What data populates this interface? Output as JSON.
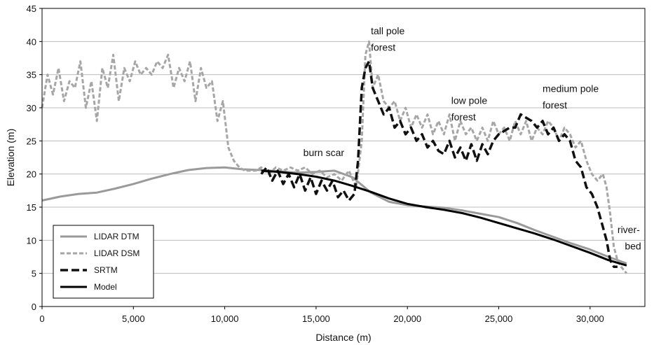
{
  "chart_data": {
    "type": "line",
    "xlabel": "Distance (m)",
    "ylabel": "Elevation (m)",
    "xlim": [
      0,
      33000
    ],
    "ylim": [
      0,
      45
    ],
    "xticks": [
      0,
      5000,
      10000,
      15000,
      20000,
      25000,
      30000
    ],
    "xtick_labels": [
      "0",
      "5,000",
      "10,000",
      "15,000",
      "20,000",
      "25,000",
      "30,000"
    ],
    "yticks": [
      0,
      5,
      10,
      15,
      20,
      25,
      30,
      35,
      40,
      45
    ],
    "ytick_labels": [
      "0",
      "5",
      "10",
      "15",
      "20",
      "25",
      "30",
      "35",
      "40",
      "45"
    ],
    "grid": "horizontal",
    "legend_position": "bottom-left",
    "series": [
      {
        "name": "LIDAR DTM",
        "style": "solid",
        "color": "#9a9a9a",
        "x": [
          0,
          1000,
          2000,
          3000,
          4000,
          5000,
          6000,
          7000,
          8000,
          9000,
          10000,
          11000,
          12000,
          13000,
          14000,
          15000,
          16000,
          17000,
          18000,
          19000,
          20000,
          21000,
          22000,
          23000,
          24000,
          25000,
          26000,
          27000,
          28000,
          29000,
          30000,
          31000,
          32000
        ],
        "y": [
          16,
          16.6,
          17,
          17.2,
          17.8,
          18.5,
          19.3,
          20,
          20.6,
          20.9,
          21,
          20.7,
          20.6,
          20.4,
          20.2,
          20.3,
          20.5,
          19.5,
          17.2,
          15.8,
          15.3,
          15.1,
          14.9,
          14.5,
          14,
          13.5,
          12.6,
          11.5,
          10.5,
          9.5,
          8.6,
          7.5,
          6.5
        ]
      },
      {
        "name": "LIDAR DSM",
        "style": "dashed",
        "color": "#a6a6a6",
        "x": [
          0,
          300,
          600,
          900,
          1200,
          1500,
          1800,
          2100,
          2400,
          2700,
          3000,
          3300,
          3600,
          3900,
          4200,
          4500,
          4800,
          5100,
          5400,
          5700,
          6000,
          6300,
          6600,
          6900,
          7200,
          7500,
          7800,
          8100,
          8400,
          8700,
          9000,
          9300,
          9600,
          9900,
          10200,
          10500,
          10800,
          11100,
          11400,
          11700,
          12000,
          12400,
          12800,
          13200,
          13600,
          14000,
          14400,
          14800,
          15200,
          15600,
          16000,
          16400,
          16800,
          17200,
          17500,
          17700,
          17900,
          18100,
          18400,
          18700,
          19000,
          19300,
          19600,
          19900,
          20200,
          20500,
          20800,
          21100,
          21400,
          21700,
          22000,
          22300,
          22600,
          22900,
          23200,
          23500,
          23800,
          24100,
          24400,
          24700,
          25000,
          25300,
          25600,
          25900,
          26200,
          26500,
          26800,
          27100,
          27400,
          27700,
          28000,
          28300,
          28600,
          28900,
          29200,
          29500,
          29800,
          30100,
          30400,
          30700,
          30900,
          31100,
          31300,
          31500,
          31700,
          32000
        ],
        "y": [
          30,
          35,
          32,
          36,
          31,
          34,
          33,
          37,
          30,
          34,
          28,
          36,
          33,
          38,
          31,
          36,
          34,
          37,
          35,
          36,
          35,
          37,
          36,
          38,
          33,
          36,
          34,
          37,
          31,
          36,
          33,
          34,
          28,
          31,
          24,
          22,
          21,
          20.5,
          20.5,
          20.5,
          21,
          20,
          21,
          20.5,
          21,
          20.5,
          21,
          20,
          20.5,
          19.5,
          20,
          19,
          20.5,
          18,
          25,
          38,
          40,
          33,
          35,
          31,
          30,
          31,
          28,
          30,
          27,
          29,
          27,
          29,
          26,
          28,
          26,
          29,
          25,
          28,
          26,
          27,
          25,
          27,
          25,
          28,
          26,
          27,
          25,
          28,
          26,
          28,
          25,
          27,
          26,
          28,
          27,
          25,
          27,
          26,
          24,
          25,
          22,
          20,
          19,
          20,
          18,
          14,
          9,
          7,
          6,
          5
        ]
      },
      {
        "name": "SRTM",
        "style": "dashed-bold",
        "color": "#111111",
        "x": [
          12000,
          12300,
          12600,
          12900,
          13200,
          13500,
          13800,
          14100,
          14400,
          14700,
          15000,
          15300,
          15600,
          15900,
          16200,
          16500,
          16800,
          17100,
          17300,
          17500,
          17700,
          17900,
          18100,
          18400,
          18700,
          19000,
          19300,
          19600,
          19900,
          20200,
          20500,
          20800,
          21100,
          21400,
          21700,
          22000,
          22300,
          22600,
          22900,
          23200,
          23500,
          23800,
          24100,
          24400,
          24700,
          25000,
          25300,
          25600,
          25900,
          26200,
          26500,
          26800,
          27100,
          27400,
          27700,
          28000,
          28300,
          28600,
          28900,
          29200,
          29500,
          29800,
          30100,
          30400,
          30700,
          30900,
          31100,
          31300,
          31500
        ],
        "y": [
          20,
          21,
          19,
          20.5,
          18.5,
          20,
          18,
          20,
          17.5,
          19.5,
          17,
          19,
          17.5,
          19,
          16.5,
          17.5,
          16,
          17,
          22,
          33,
          36,
          37,
          33,
          31,
          29,
          30,
          27,
          28,
          26,
          27,
          25,
          26,
          24,
          25,
          23.5,
          23,
          25,
          22.5,
          24,
          22,
          24.5,
          22,
          24.5,
          23,
          25,
          26,
          26.5,
          27,
          27,
          29,
          28.5,
          28,
          27,
          28,
          26,
          27,
          25,
          26,
          25,
          22,
          21,
          18,
          17,
          15,
          12,
          10,
          7,
          6,
          6
        ]
      },
      {
        "name": "Model",
        "style": "solid-bold",
        "color": "#000000",
        "x": [
          12000,
          13000,
          14000,
          15000,
          16000,
          17000,
          18000,
          19000,
          20000,
          21000,
          22000,
          23000,
          24000,
          25000,
          26000,
          27000,
          28000,
          29000,
          30000,
          31000,
          32000
        ],
        "y": [
          20.5,
          20.3,
          20,
          19.6,
          19,
          18.2,
          17.3,
          16.3,
          15.5,
          15,
          14.6,
          14.1,
          13.4,
          12.6,
          11.8,
          11,
          10.1,
          9.1,
          8.1,
          7,
          6.2
        ]
      }
    ],
    "annotations": [
      {
        "text": "burn scar",
        "x": 14300,
        "y": 22.7
      },
      {
        "text": "tall pole",
        "x": 18000,
        "y": 41.1
      },
      {
        "text": "forest",
        "x": 18000,
        "y": 38.6
      },
      {
        "text": "low pole",
        "x": 22400,
        "y": 30.6
      },
      {
        "text": "forest",
        "x": 22400,
        "y": 28.1
      },
      {
        "text": "medium pole",
        "x": 27400,
        "y": 32.4
      },
      {
        "text": "forest",
        "x": 27400,
        "y": 29.9
      },
      {
        "text": "river-",
        "x": 31500,
        "y": 11.1
      },
      {
        "text": "bed",
        "x": 31900,
        "y": 8.6
      }
    ]
  }
}
